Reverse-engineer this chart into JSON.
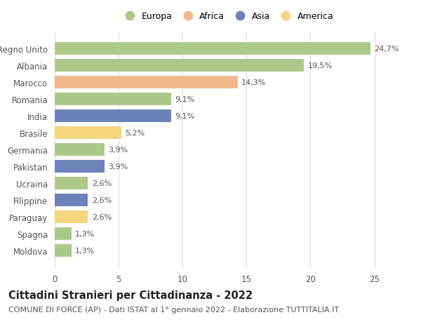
{
  "countries": [
    "Moldova",
    "Spagna",
    "Paraguay",
    "Filippine",
    "Ucraina",
    "Pakistan",
    "Germania",
    "Brasile",
    "India",
    "Romania",
    "Marocco",
    "Albania",
    "Regno Unito"
  ],
  "values": [
    1.3,
    1.3,
    2.6,
    2.6,
    2.6,
    3.9,
    3.9,
    5.2,
    9.1,
    9.1,
    14.3,
    19.5,
    24.7
  ],
  "labels": [
    "1,3%",
    "1,3%",
    "2,6%",
    "2,6%",
    "2,6%",
    "3,9%",
    "3,9%",
    "5,2%",
    "9,1%",
    "9,1%",
    "14,3%",
    "19,5%",
    "24,7%"
  ],
  "continents": [
    "Europa",
    "Europa",
    "America",
    "Asia",
    "Europa",
    "Asia",
    "Europa",
    "America",
    "Asia",
    "Europa",
    "Africa",
    "Europa",
    "Europa"
  ],
  "colors": {
    "Europa": "#adc98a",
    "Africa": "#f0b98d",
    "Asia": "#6d82b8",
    "America": "#f5d57e"
  },
  "legend_order": [
    "Europa",
    "Africa",
    "Asia",
    "America"
  ],
  "title": "Cittadini Stranieri per Cittadinanza - 2022",
  "subtitle": "COMUNE DI FORCE (AP) - Dati ISTAT al 1° gennaio 2022 - Elaborazione TUTTITALIA.IT",
  "xlim": [
    0,
    27
  ],
  "xticks": [
    0,
    5,
    10,
    15,
    20,
    25
  ],
  "background_color": "#ffffff",
  "grid_color": "#dddddd",
  "bar_height": 0.75,
  "title_fontsize": 10.5,
  "subtitle_fontsize": 8,
  "label_fontsize": 8,
  "tick_fontsize": 8.5,
  "legend_fontsize": 9
}
